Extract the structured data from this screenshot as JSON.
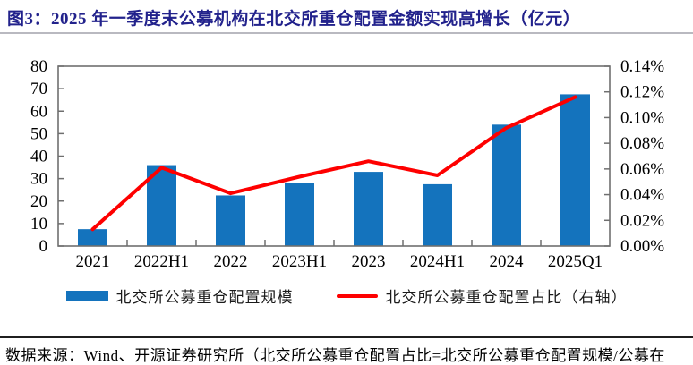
{
  "title": "图3：2025 年一季度末公募机构在北交所重仓配置金额实现高增长（亿元）",
  "legend": {
    "bar_label": "北交所公募重仓配置规模",
    "line_label": "北交所公募重仓配置占比（右轴）"
  },
  "footer": {
    "source_note": "数据来源：Wind、开源证券研究所（北交所公募重仓配置占比=北交所公募重仓配置规模/公募在"
  },
  "colors": {
    "bar": "#1473BD",
    "line": "#FE0000",
    "title_text": "#22228C",
    "axis": "#6F6F6F"
  },
  "chart_data": {
    "type": "bar",
    "combo": "bar+line",
    "title": "2025 年一季度末公募机构在北交所重仓配置金额实现高增长（亿元）",
    "categories": [
      "2021",
      "2022H1",
      "2022",
      "2023H1",
      "2023",
      "2024H1",
      "2024",
      "2025Q1"
    ],
    "series": [
      {
        "name": "北交所公募重仓配置规模",
        "chart": "bar",
        "axis": "left",
        "values": [
          7.5,
          36,
          22.5,
          28,
          33,
          27.5,
          54,
          67.5
        ]
      },
      {
        "name": "北交所公募重仓配置占比（右轴）",
        "chart": "line",
        "axis": "right",
        "unit": "%",
        "values": [
          0.013,
          0.061,
          0.041,
          0.054,
          0.066,
          0.055,
          0.092,
          0.116
        ]
      }
    ],
    "left_axis": {
      "min": 0,
      "max": 80,
      "step": 10,
      "tick_labels": [
        "0",
        "10",
        "20",
        "30",
        "40",
        "50",
        "60",
        "70",
        "80"
      ]
    },
    "right_axis": {
      "min": 0,
      "max": 0.14,
      "step": 0.02,
      "tick_labels": [
        "0.00%",
        "0.02%",
        "0.04%",
        "0.06%",
        "0.08%",
        "0.10%",
        "0.12%",
        "0.14%"
      ]
    },
    "grid": false,
    "legend_position": "bottom"
  }
}
